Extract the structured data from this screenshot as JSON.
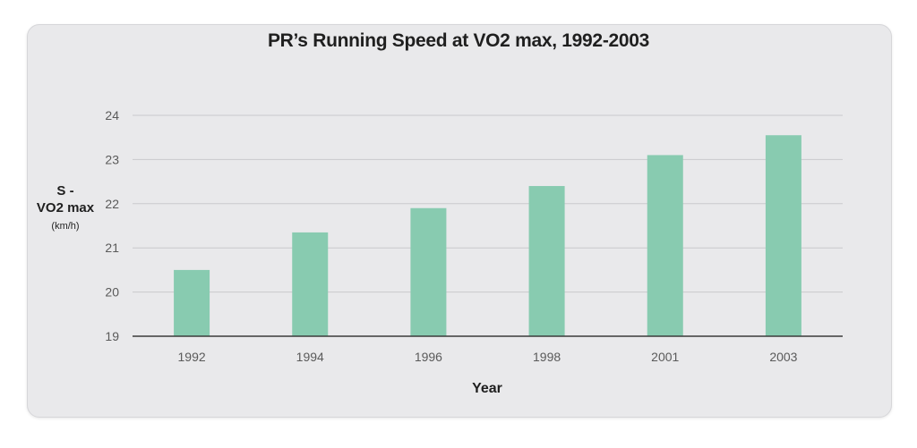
{
  "chart_data": {
    "type": "bar",
    "title": "PR’s Running Speed at VO2 max, 1992-2003",
    "xlabel": "Year",
    "ylabel_lines": [
      "S -",
      "VO2 max",
      "(km/h)"
    ],
    "categories": [
      "1992",
      "1994",
      "1996",
      "1998",
      "2001",
      "2003"
    ],
    "values": [
      20.5,
      21.35,
      21.9,
      22.4,
      23.1,
      23.55
    ],
    "ylim": [
      19,
      24
    ],
    "yticks": [
      19,
      20,
      21,
      22,
      23,
      24
    ],
    "grid": true,
    "colors": {
      "bar": "#88cbb0",
      "grid": "#c9c9cc",
      "axis": "#3a3a3a",
      "tick_text": "#5a5a5a",
      "card": "#e9e9eb"
    }
  }
}
